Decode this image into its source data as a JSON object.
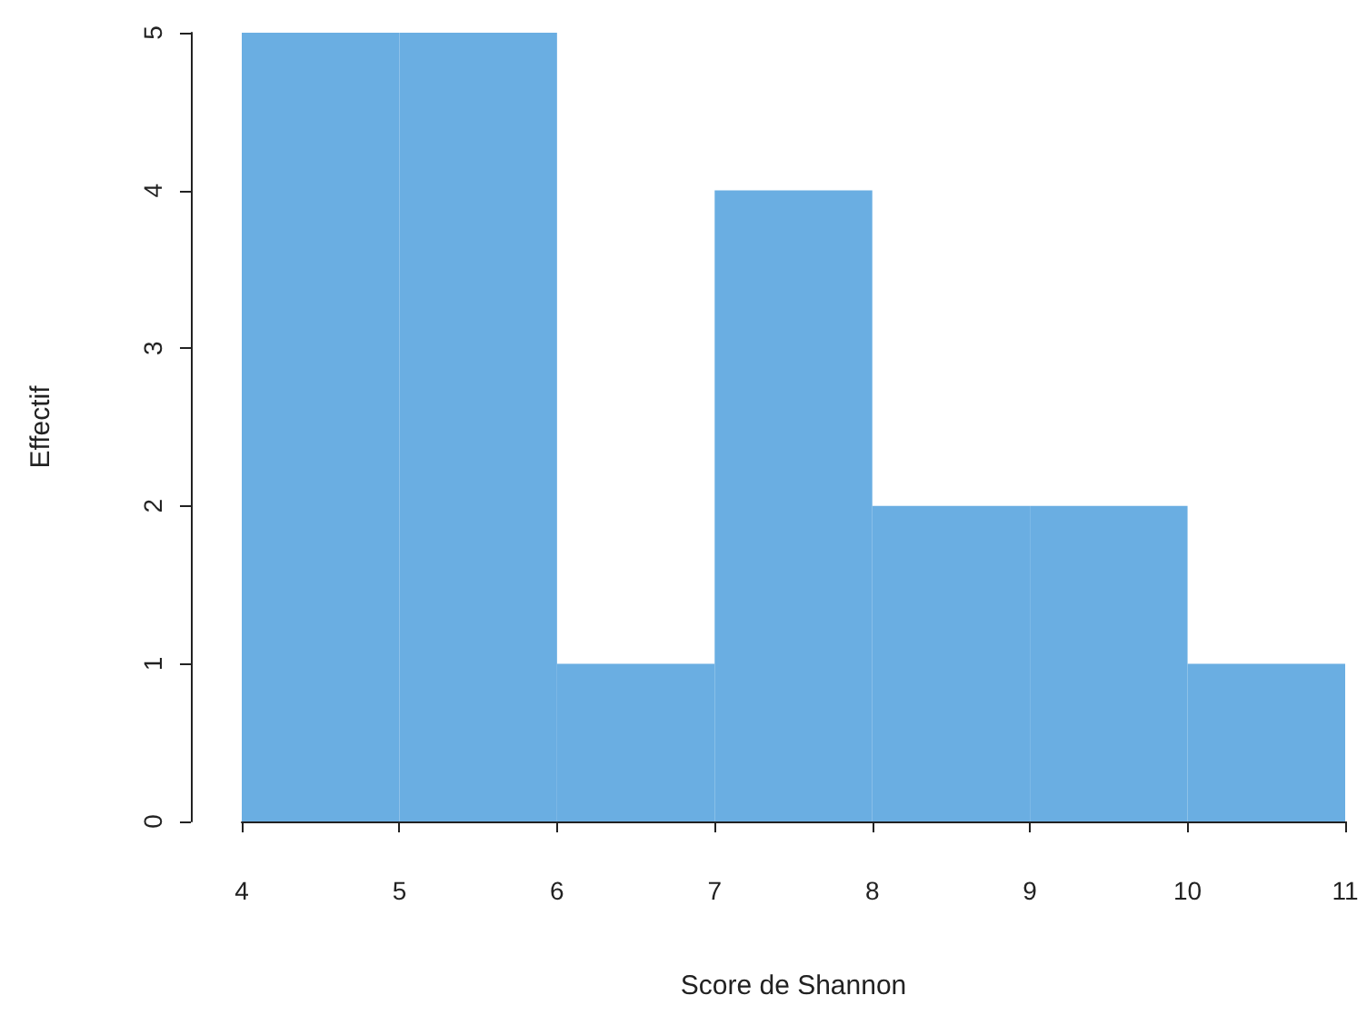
{
  "chart_data": {
    "type": "histogram",
    "xlabel": "Score de Shannon",
    "ylabel": "Effectif",
    "bins": [
      4,
      5,
      6,
      7,
      8,
      9,
      10,
      11
    ],
    "values": [
      5,
      5,
      1,
      4,
      2,
      2,
      1
    ],
    "color": "#6aaee2",
    "xlim": [
      4,
      11
    ],
    "xticks": [
      4,
      5,
      6,
      7,
      8,
      9,
      10,
      11
    ],
    "ylim": [
      0,
      5
    ],
    "yticks": [
      0,
      1,
      2,
      3,
      4,
      5
    ],
    "grid": false
  }
}
